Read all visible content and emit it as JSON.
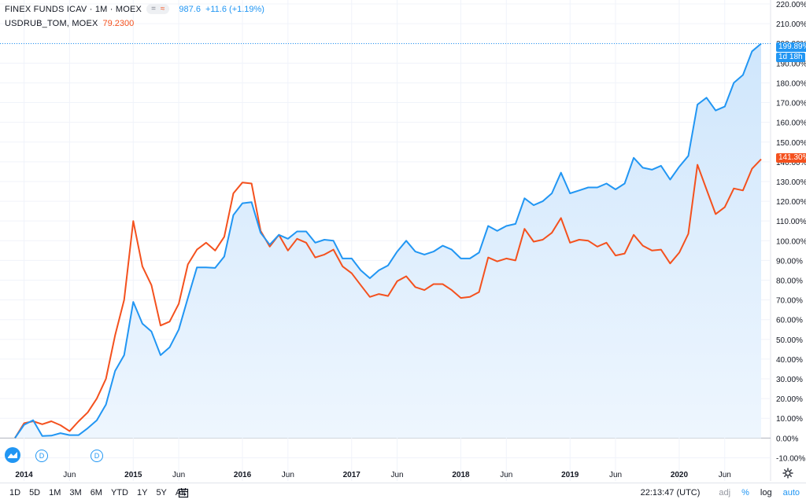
{
  "legend": {
    "symbol_label": "FINEX FUNDS ICAV · 1M · MOEX",
    "badge_a": "=",
    "badge_b": "≈",
    "primary_value": "987.6",
    "primary_change": "+11.6 (+1.19%)",
    "compare_label": "USDRUB_TOM, MOEX",
    "compare_value": "79.2300"
  },
  "colors": {
    "primary": "#2196f3",
    "compare": "#f4511e",
    "fill": "#dbeeff"
  },
  "tags": {
    "primary_pct": "199.89%",
    "countdown": "1d 18h",
    "compare_pct": "141.30%"
  },
  "markers": [
    "D",
    "D"
  ],
  "icons": [
    "tradingview-logo-icon",
    "calendar-icon",
    "settings-gear-icon"
  ],
  "bottom_bar": {
    "ranges": [
      "1D",
      "5D",
      "1M",
      "3M",
      "6M",
      "YTD",
      "1Y",
      "5Y",
      "All"
    ],
    "time": "22:13:47 (UTC)",
    "adj": "adj",
    "percent": "%",
    "log": "log",
    "auto": "auto"
  },
  "chart_data": {
    "type": "line",
    "y_unit": "%",
    "y_range": [
      -15,
      222
    ],
    "y_ticks": [
      -10,
      0,
      10,
      20,
      30,
      40,
      50,
      60,
      70,
      80,
      90,
      100,
      110,
      120,
      130,
      140,
      150,
      160,
      170,
      180,
      190,
      200,
      210,
      220
    ],
    "y_tick_labels": [
      "-10.00%",
      "0.00%",
      "10.00%",
      "20.00%",
      "30.00%",
      "40.00%",
      "50.00%",
      "60.00%",
      "70.00%",
      "80.00%",
      "90.00%",
      "100.00%",
      "110.00%",
      "120.00%",
      "130.00%",
      "140.00%",
      "150.00%",
      "160.00%",
      "170.00%",
      "180.00%",
      "190.00%",
      "200.00%",
      "210.00%",
      "220.00%"
    ],
    "x_ticks": [
      {
        "label": "2014",
        "i": 1,
        "bold": true
      },
      {
        "label": "Jun",
        "i": 6,
        "bold": false
      },
      {
        "label": "2015",
        "i": 13,
        "bold": true
      },
      {
        "label": "Jun",
        "i": 18,
        "bold": false
      },
      {
        "label": "2016",
        "i": 25,
        "bold": true
      },
      {
        "label": "Jun",
        "i": 30,
        "bold": false
      },
      {
        "label": "2017",
        "i": 37,
        "bold": true
      },
      {
        "label": "Jun",
        "i": 42,
        "bold": false
      },
      {
        "label": "2018",
        "i": 49,
        "bold": true
      },
      {
        "label": "Jun",
        "i": 54,
        "bold": false
      },
      {
        "label": "2019",
        "i": 61,
        "bold": true
      },
      {
        "label": "Jun",
        "i": 66,
        "bold": false
      },
      {
        "label": "2020",
        "i": 73,
        "bold": true
      },
      {
        "label": "Jun",
        "i": 78,
        "bold": false
      }
    ],
    "series": [
      {
        "values": [
          0,
          6.7,
          9,
          1,
          1.2,
          2.5,
          1.5,
          1.5,
          5,
          9,
          17,
          34,
          42,
          69,
          58,
          54,
          42,
          46,
          55,
          71,
          86.5,
          86.5,
          86.2,
          92,
          113,
          119,
          119.5,
          104,
          98,
          103,
          101,
          104.7,
          104.7,
          99,
          100.5,
          100,
          91,
          91,
          85,
          81,
          85,
          87.5,
          94.5,
          100,
          94.5,
          93,
          94.5,
          97.5,
          95.5,
          91,
          91,
          94,
          107.5,
          105,
          107.5,
          108.5,
          121.5,
          118,
          120,
          124,
          134.5,
          124,
          125.5,
          127,
          127,
          129,
          126,
          129,
          142,
          137,
          136,
          138,
          131,
          137.5,
          143,
          169,
          172.5,
          166,
          168,
          180,
          184,
          196,
          199.89
        ]
      },
      {
        "values": [
          0,
          7.5,
          8.5,
          7,
          8.5,
          6.5,
          3.5,
          8.5,
          13,
          20,
          30,
          52,
          70,
          110,
          87,
          77.5,
          57,
          59,
          68,
          88,
          95.5,
          99,
          95,
          102,
          124,
          129.5,
          129,
          105,
          97,
          103,
          95,
          101,
          99,
          91.5,
          93,
          95.5,
          87,
          83.5,
          77.5,
          71.5,
          73,
          72,
          79.5,
          82,
          76.5,
          75,
          78,
          78,
          75,
          71,
          71.5,
          74,
          91.5,
          89.5,
          91,
          90,
          106,
          99.5,
          100.5,
          104,
          111.5,
          99,
          100.5,
          100,
          97,
          99,
          92.5,
          93.5,
          103,
          97.5,
          95,
          95.5,
          88.5,
          94,
          103.5,
          138.5,
          126,
          113.5,
          117,
          126.5,
          125.5,
          136.5,
          141.3
        ]
      }
    ]
  }
}
